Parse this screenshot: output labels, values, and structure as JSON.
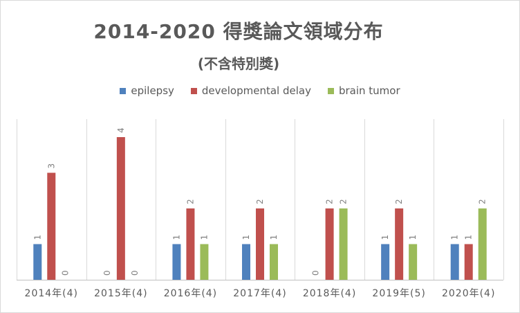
{
  "chart_data": {
    "type": "bar",
    "title": "2014-2020 得獎論文領域分布",
    "subtitle": "(不含特別獎)",
    "categories": [
      "2014年(4)",
      "2015年(4)",
      "2016年(4)",
      "2017年(4)",
      "2018年(4)",
      "2019年(5)",
      "2020年(4)"
    ],
    "series": [
      {
        "name": "epilepsy",
        "color": "#4f81bd",
        "values": [
          1,
          0,
          1,
          1,
          0,
          1,
          1
        ]
      },
      {
        "name": "developmental delay",
        "color": "#c0504d",
        "values": [
          3,
          4,
          2,
          2,
          2,
          2,
          1
        ]
      },
      {
        "name": "brain tumor",
        "color": "#9bbb59",
        "values": [
          0,
          0,
          1,
          1,
          2,
          1,
          2
        ]
      }
    ],
    "ylim": [
      0,
      4
    ],
    "grid": "vertical category separators",
    "legend_position": "top",
    "data_labels": true,
    "xlabel": "",
    "ylabel": ""
  }
}
